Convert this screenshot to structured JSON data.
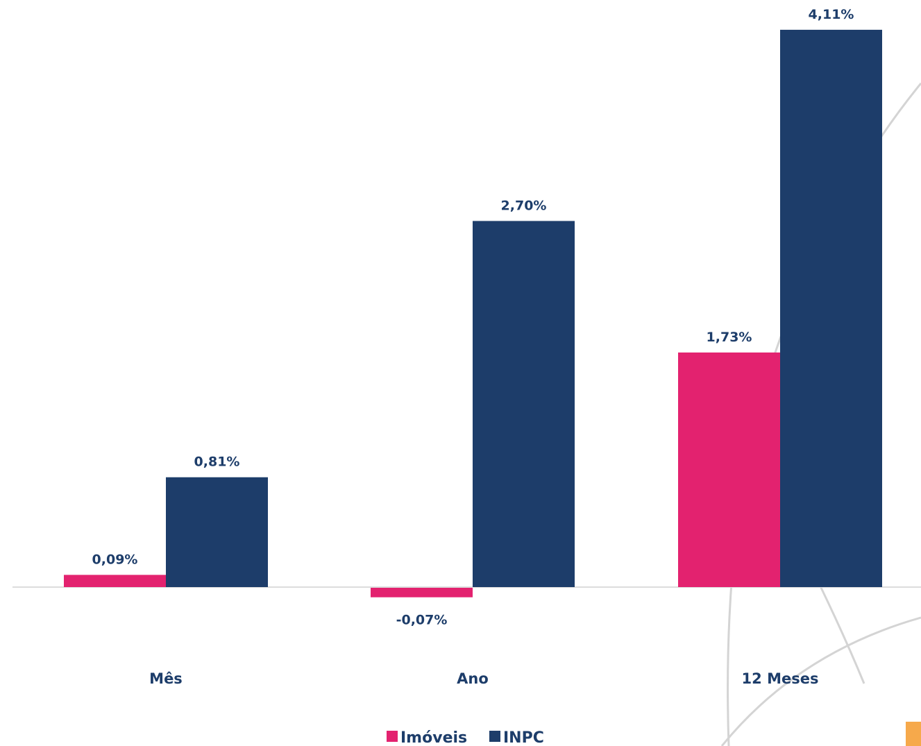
{
  "colors": {
    "imoveis": "#e3226f",
    "inpc": "#1d3d6a",
    "label": "#1d3d6a",
    "baseline": "#dcdcdc",
    "decor_arc": "#d4d4d4",
    "decor_corner": "#f6a94b"
  },
  "chart_data": {
    "type": "bar",
    "title": "",
    "xlabel": "",
    "ylabel": "",
    "categories": [
      "Mês",
      "Ano",
      "12 Meses"
    ],
    "series": [
      {
        "name": "Imóveis",
        "values": [
          0.09,
          -0.07,
          1.73
        ],
        "labels": [
          "0,09%",
          "-0,07%",
          "1,73%"
        ]
      },
      {
        "name": "INPC",
        "values": [
          0.81,
          2.7,
          4.11
        ],
        "labels": [
          "0,81%",
          "2,70%",
          "4,11%"
        ]
      }
    ],
    "grid": false,
    "legend_position": "bottom"
  }
}
